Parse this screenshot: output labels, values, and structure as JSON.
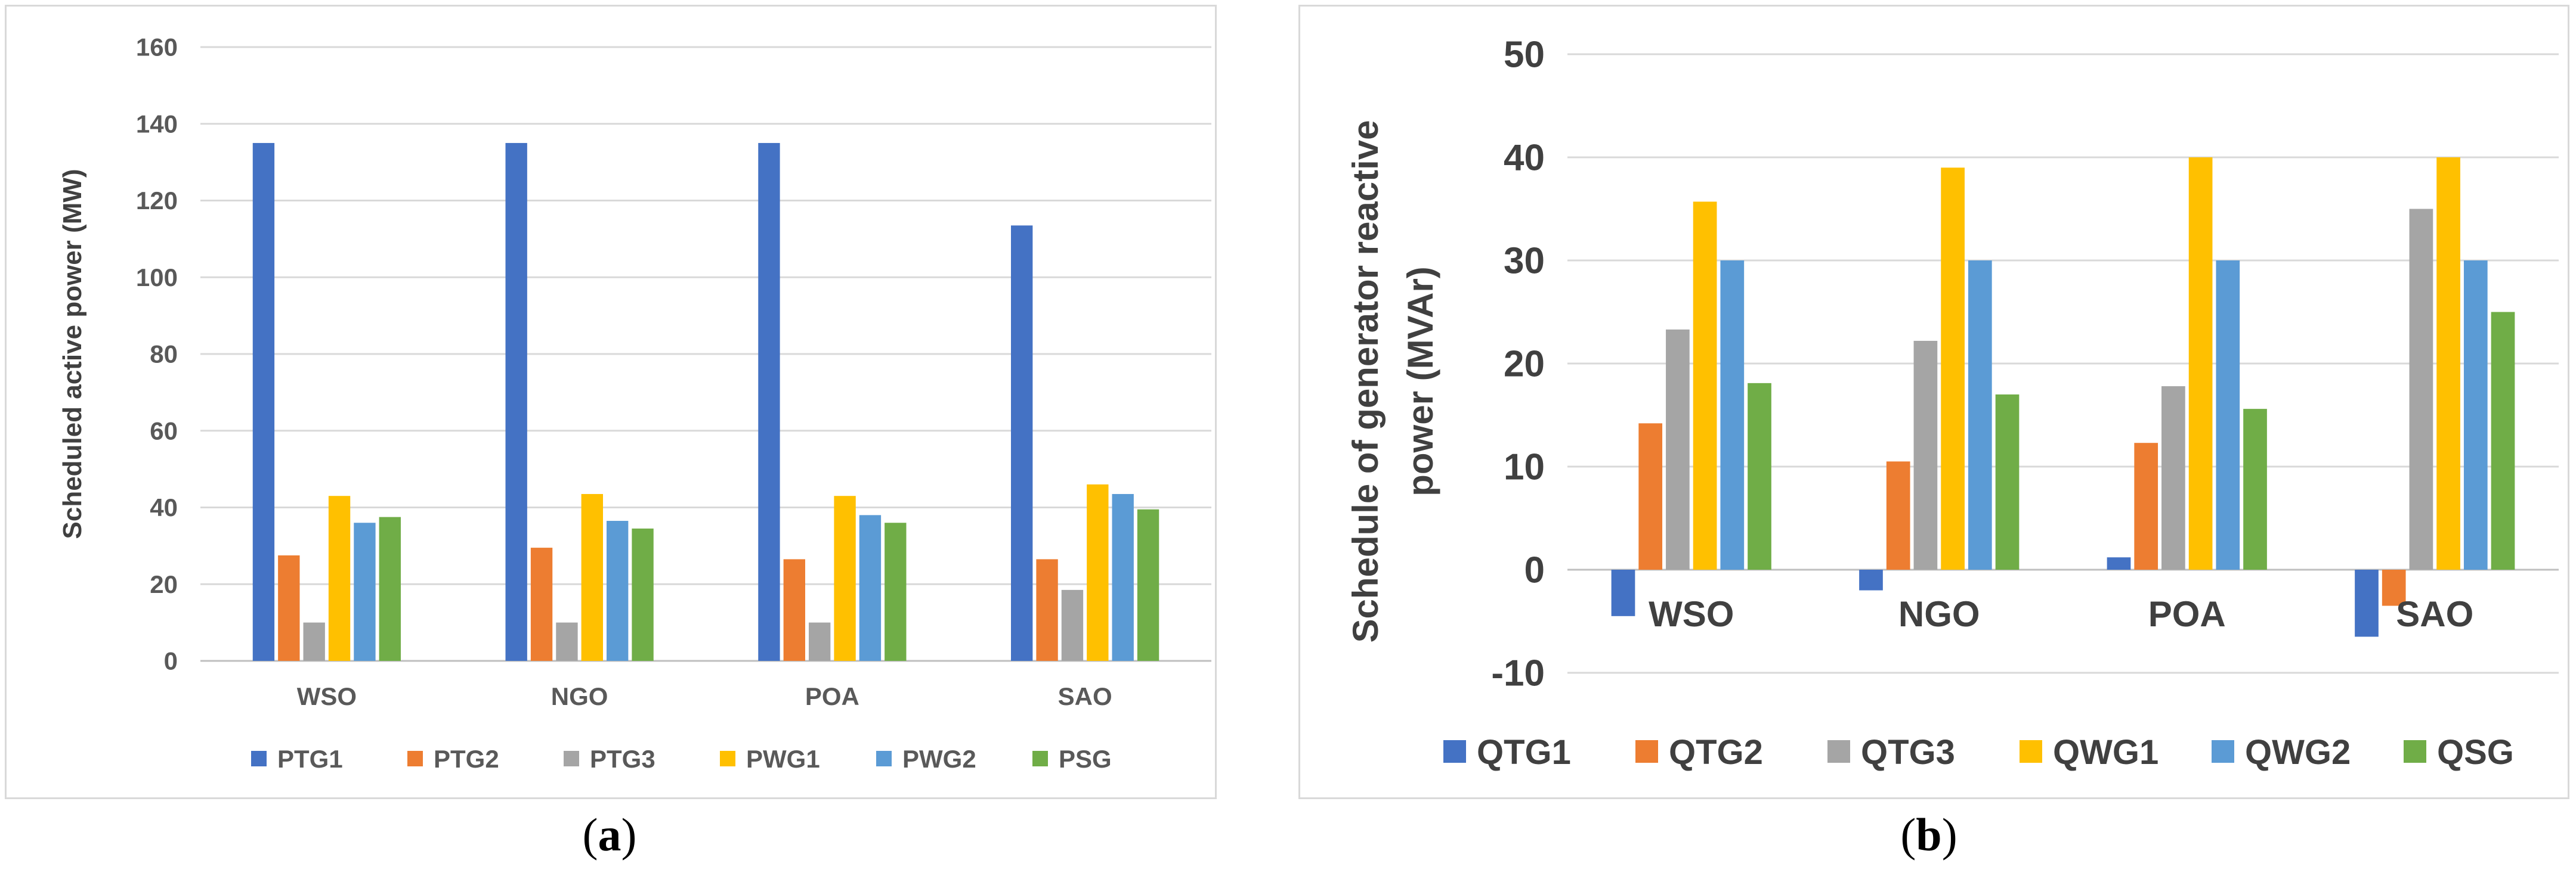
{
  "chart_data": [
    {
      "id": "a",
      "type": "bar",
      "title": "",
      "xlabel": "",
      "ylabel": "Scheduled active power (MW)",
      "ylim": [
        0,
        160
      ],
      "yticks": [
        0,
        20,
        40,
        60,
        80,
        100,
        120,
        140,
        160
      ],
      "categories": [
        "WSO",
        "NGO",
        "POA",
        "SAO"
      ],
      "grid": true,
      "legend_position": "bottom",
      "series": [
        {
          "name": "PTG1",
          "color": "#4472C4",
          "values": [
            135,
            135,
            135,
            113.5
          ]
        },
        {
          "name": "PTG2",
          "color": "#ED7D31",
          "values": [
            27.5,
            29.5,
            26.5,
            26.5
          ]
        },
        {
          "name": "PTG3",
          "color": "#A5A5A5",
          "values": [
            10,
            10,
            10,
            18.5
          ]
        },
        {
          "name": "PWG1",
          "color": "#FFC000",
          "values": [
            43,
            43.5,
            43,
            46
          ]
        },
        {
          "name": "PWG2",
          "color": "#5B9BD5",
          "values": [
            36,
            36.5,
            38,
            43.5
          ]
        },
        {
          "name": "PSG",
          "color": "#70AD47",
          "values": [
            37.5,
            34.5,
            36,
            39.5
          ]
        }
      ]
    },
    {
      "id": "b",
      "type": "bar",
      "title": "",
      "xlabel": "",
      "ylabel": "Schedule of generator reactive power  (MVAr)",
      "ylim": [
        -10,
        50
      ],
      "yticks": [
        -10,
        0,
        10,
        20,
        30,
        40,
        50
      ],
      "categories": [
        "WSO",
        "NGO",
        "POA",
        "SAO"
      ],
      "grid": true,
      "legend_position": "bottom",
      "series": [
        {
          "name": "QTG1",
          "color": "#4472C4",
          "values": [
            -4.5,
            -2,
            1.2,
            -6.5
          ]
        },
        {
          "name": "QTG2",
          "color": "#ED7D31",
          "values": [
            14.2,
            10.5,
            12.3,
            -3.5
          ]
        },
        {
          "name": "QTG3",
          "color": "#A5A5A5",
          "values": [
            23.3,
            22.2,
            17.8,
            35
          ]
        },
        {
          "name": "QWG1",
          "color": "#FFC000",
          "values": [
            35.7,
            39,
            40,
            40
          ]
        },
        {
          "name": "QWG2",
          "color": "#5B9BD5",
          "values": [
            30,
            30,
            30,
            30
          ]
        },
        {
          "name": "QSG",
          "color": "#70AD47",
          "values": [
            18.1,
            17,
            15.6,
            25
          ]
        }
      ]
    }
  ],
  "captions": {
    "a": "a",
    "b": "b"
  }
}
